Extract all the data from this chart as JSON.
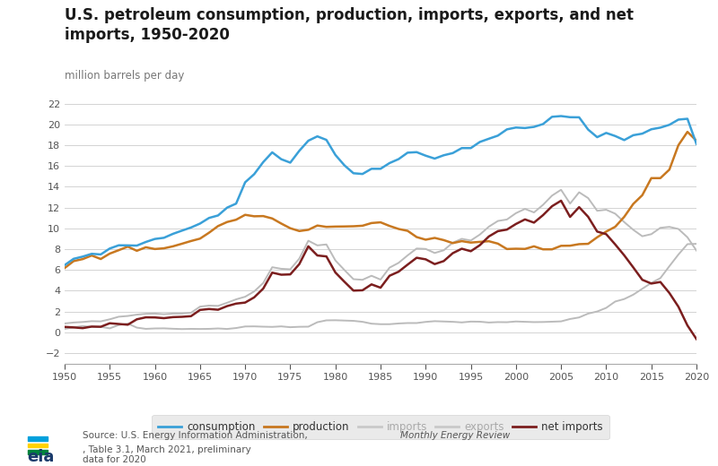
{
  "title": "U.S. petroleum consumption, production, imports, exports, and net\nimports, 1950-2020",
  "ylabel": "million barrels per day",
  "source_text_parts": [
    "Source: U.S. Energy Information Administration, ",
    "Monthly Energy Review",
    ", Table 3.1, March 2021, preliminary\ndata for 2020"
  ],
  "xlim": [
    1950,
    2020
  ],
  "ylim": [
    -3,
    23
  ],
  "yticks": [
    -2,
    0,
    2,
    4,
    6,
    8,
    10,
    12,
    14,
    16,
    18,
    20,
    22
  ],
  "xticks": [
    1950,
    1955,
    1960,
    1965,
    1970,
    1975,
    1980,
    1985,
    1990,
    1995,
    2000,
    2005,
    2010,
    2015,
    2020
  ],
  "colors": {
    "consumption": "#3AA0D8",
    "production": "#C87820",
    "imports": "#BBBBBB",
    "exports": "#BBBBBB",
    "net_imports": "#7B1E1E"
  },
  "consumption": {
    "years": [
      1950,
      1951,
      1952,
      1953,
      1954,
      1955,
      1956,
      1957,
      1958,
      1959,
      1960,
      1961,
      1962,
      1963,
      1964,
      1965,
      1966,
      1967,
      1968,
      1969,
      1970,
      1971,
      1972,
      1973,
      1974,
      1975,
      1976,
      1977,
      1978,
      1979,
      1980,
      1981,
      1982,
      1983,
      1984,
      1985,
      1986,
      1987,
      1988,
      1989,
      1990,
      1991,
      1992,
      1993,
      1994,
      1995,
      1996,
      1997,
      1998,
      1999,
      2000,
      2001,
      2002,
      2003,
      2004,
      2005,
      2006,
      2007,
      2008,
      2009,
      2010,
      2011,
      2012,
      2013,
      2014,
      2015,
      2016,
      2017,
      2018,
      2019,
      2020
    ],
    "values": [
      6.46,
      7.07,
      7.28,
      7.55,
      7.49,
      8.06,
      8.37,
      8.36,
      8.34,
      8.69,
      8.98,
      9.09,
      9.47,
      9.78,
      10.08,
      10.46,
      11.0,
      11.24,
      11.99,
      12.38,
      14.43,
      15.21,
      16.37,
      17.31,
      16.65,
      16.32,
      17.46,
      18.43,
      18.85,
      18.51,
      17.06,
      16.06,
      15.3,
      15.23,
      15.73,
      15.73,
      16.28,
      16.66,
      17.28,
      17.33,
      16.99,
      16.71,
      17.03,
      17.24,
      17.72,
      17.72,
      18.31,
      18.62,
      18.92,
      19.52,
      19.7,
      19.65,
      19.76,
      20.03,
      20.73,
      20.8,
      20.69,
      20.68,
      19.5,
      18.77,
      19.18,
      18.88,
      18.49,
      18.96,
      19.11,
      19.53,
      19.69,
      19.96,
      20.46,
      20.54,
      18.12
    ]
  },
  "production": {
    "years": [
      1950,
      1951,
      1952,
      1953,
      1954,
      1955,
      1956,
      1957,
      1958,
      1959,
      1960,
      1961,
      1962,
      1963,
      1964,
      1965,
      1966,
      1967,
      1968,
      1969,
      1970,
      1971,
      1972,
      1973,
      1974,
      1975,
      1976,
      1977,
      1978,
      1979,
      1980,
      1981,
      1982,
      1983,
      1984,
      1985,
      1986,
      1987,
      1988,
      1989,
      1990,
      1991,
      1992,
      1993,
      1994,
      1995,
      1996,
      1997,
      1998,
      1999,
      2000,
      2001,
      2002,
      2003,
      2004,
      2005,
      2006,
      2007,
      2008,
      2009,
      2010,
      2011,
      2012,
      2013,
      2014,
      2015,
      2016,
      2017,
      2018,
      2019,
      2020
    ],
    "values": [
      6.18,
      6.85,
      7.04,
      7.39,
      7.05,
      7.57,
      7.9,
      8.24,
      7.84,
      8.18,
      8.01,
      8.08,
      8.27,
      8.52,
      8.78,
      9.01,
      9.58,
      10.22,
      10.61,
      10.83,
      11.3,
      11.16,
      11.18,
      10.95,
      10.46,
      10.01,
      9.74,
      9.86,
      10.27,
      10.14,
      10.17,
      10.18,
      10.2,
      10.25,
      10.51,
      10.58,
      10.23,
      9.94,
      9.76,
      9.16,
      8.91,
      9.08,
      8.87,
      8.58,
      8.77,
      8.63,
      8.7,
      8.76,
      8.53,
      8.01,
      8.04,
      8.02,
      8.27,
      7.98,
      7.98,
      8.32,
      8.33,
      8.48,
      8.51,
      9.14,
      9.69,
      10.15,
      11.11,
      12.35,
      13.19,
      14.83,
      14.83,
      15.65,
      18.0,
      19.28,
      18.43
    ]
  },
  "imports": {
    "years": [
      1950,
      1951,
      1952,
      1953,
      1954,
      1955,
      1956,
      1957,
      1958,
      1959,
      1960,
      1961,
      1962,
      1963,
      1964,
      1965,
      1966,
      1967,
      1968,
      1969,
      1970,
      1971,
      1972,
      1973,
      1974,
      1975,
      1976,
      1977,
      1978,
      1979,
      1980,
      1981,
      1982,
      1983,
      1984,
      1985,
      1986,
      1987,
      1988,
      1989,
      1990,
      1991,
      1992,
      1993,
      1994,
      1995,
      1996,
      1997,
      1998,
      1999,
      2000,
      2001,
      2002,
      2003,
      2004,
      2005,
      2006,
      2007,
      2008,
      2009,
      2010,
      2011,
      2012,
      2013,
      2014,
      2015,
      2016,
      2017,
      2018,
      2019,
      2020
    ],
    "values": [
      0.85,
      0.94,
      0.99,
      1.07,
      1.05,
      1.25,
      1.5,
      1.57,
      1.7,
      1.78,
      1.8,
      1.74,
      1.8,
      1.8,
      1.88,
      2.47,
      2.57,
      2.54,
      2.84,
      3.17,
      3.42,
      3.93,
      4.74,
      6.26,
      6.11,
      6.06,
      7.09,
      8.81,
      8.36,
      8.45,
      6.91,
      5.99,
      5.11,
      5.05,
      5.44,
      5.07,
      6.22,
      6.68,
      7.4,
      8.06,
      8.02,
      7.63,
      7.89,
      8.62,
      8.99,
      8.83,
      9.4,
      10.16,
      10.71,
      10.85,
      11.46,
      11.87,
      11.53,
      12.26,
      13.15,
      13.71,
      12.38,
      13.47,
      12.91,
      11.69,
      11.79,
      11.41,
      10.6,
      9.86,
      9.24,
      9.44,
      10.05,
      10.14,
      9.94,
      9.14,
      7.86
    ]
  },
  "exports": {
    "years": [
      1950,
      1951,
      1952,
      1953,
      1954,
      1955,
      1956,
      1957,
      1958,
      1959,
      1960,
      1961,
      1962,
      1963,
      1964,
      1965,
      1966,
      1967,
      1968,
      1969,
      1970,
      1971,
      1972,
      1973,
      1974,
      1975,
      1976,
      1977,
      1978,
      1979,
      1980,
      1981,
      1982,
      1983,
      1984,
      1985,
      1986,
      1987,
      1988,
      1989,
      1990,
      1991,
      1992,
      1993,
      1994,
      1995,
      1996,
      1997,
      1998,
      1999,
      2000,
      2001,
      2002,
      2003,
      2004,
      2005,
      2006,
      2007,
      2008,
      2009,
      2010,
      2011,
      2012,
      2013,
      2014,
      2015,
      2016,
      2017,
      2018,
      2019,
      2020
    ],
    "values": [
      0.33,
      0.47,
      0.6,
      0.53,
      0.52,
      0.38,
      0.7,
      0.84,
      0.45,
      0.33,
      0.37,
      0.38,
      0.34,
      0.31,
      0.33,
      0.32,
      0.33,
      0.37,
      0.32,
      0.41,
      0.56,
      0.57,
      0.54,
      0.52,
      0.57,
      0.49,
      0.53,
      0.54,
      0.97,
      1.15,
      1.16,
      1.13,
      1.1,
      1.01,
      0.83,
      0.78,
      0.78,
      0.85,
      0.89,
      0.89,
      1.0,
      1.07,
      1.04,
      1.01,
      0.95,
      1.03,
      1.02,
      0.94,
      0.98,
      0.97,
      1.04,
      1.01,
      0.98,
      0.99,
      1.02,
      1.05,
      1.28,
      1.43,
      1.8,
      2.0,
      2.35,
      2.96,
      3.2,
      3.62,
      4.19,
      4.75,
      5.21,
      6.36,
      7.48,
      8.48,
      8.51
    ]
  },
  "net_imports": {
    "years": [
      1950,
      1951,
      1952,
      1953,
      1954,
      1955,
      1956,
      1957,
      1958,
      1959,
      1960,
      1961,
      1962,
      1963,
      1964,
      1965,
      1966,
      1967,
      1968,
      1969,
      1970,
      1971,
      1972,
      1973,
      1974,
      1975,
      1976,
      1977,
      1978,
      1979,
      1980,
      1981,
      1982,
      1983,
      1984,
      1985,
      1986,
      1987,
      1988,
      1989,
      1990,
      1991,
      1992,
      1993,
      1994,
      1995,
      1996,
      1997,
      1998,
      1999,
      2000,
      2001,
      2002,
      2003,
      2004,
      2005,
      2006,
      2007,
      2008,
      2009,
      2010,
      2011,
      2012,
      2013,
      2014,
      2015,
      2016,
      2017,
      2018,
      2019,
      2020
    ],
    "values": [
      0.52,
      0.47,
      0.4,
      0.55,
      0.53,
      0.87,
      0.8,
      0.73,
      1.25,
      1.44,
      1.43,
      1.36,
      1.46,
      1.49,
      1.55,
      2.15,
      2.24,
      2.17,
      2.52,
      2.76,
      2.86,
      3.36,
      4.2,
      5.74,
      5.54,
      5.57,
      6.56,
      8.27,
      7.39,
      7.3,
      5.75,
      4.86,
      4.01,
      4.04,
      4.61,
      4.29,
      5.44,
      5.83,
      6.51,
      7.17,
      7.02,
      6.56,
      6.85,
      7.61,
      8.04,
      7.8,
      8.38,
      9.22,
      9.73,
      9.88,
      10.42,
      10.86,
      10.55,
      11.27,
      12.13,
      12.66,
      11.1,
      12.04,
      11.11,
      9.69,
      9.44,
      8.45,
      7.4,
      6.24,
      5.05,
      4.69,
      4.84,
      3.78,
      2.46,
      0.66,
      -0.65
    ]
  },
  "bg_color": "#FFFFFF",
  "legend_bg": "#E5E5E5",
  "grid_color": "#CCCCCC",
  "tick_color": "#555555",
  "title_color": "#1A1A1A",
  "label_color": "#777777"
}
